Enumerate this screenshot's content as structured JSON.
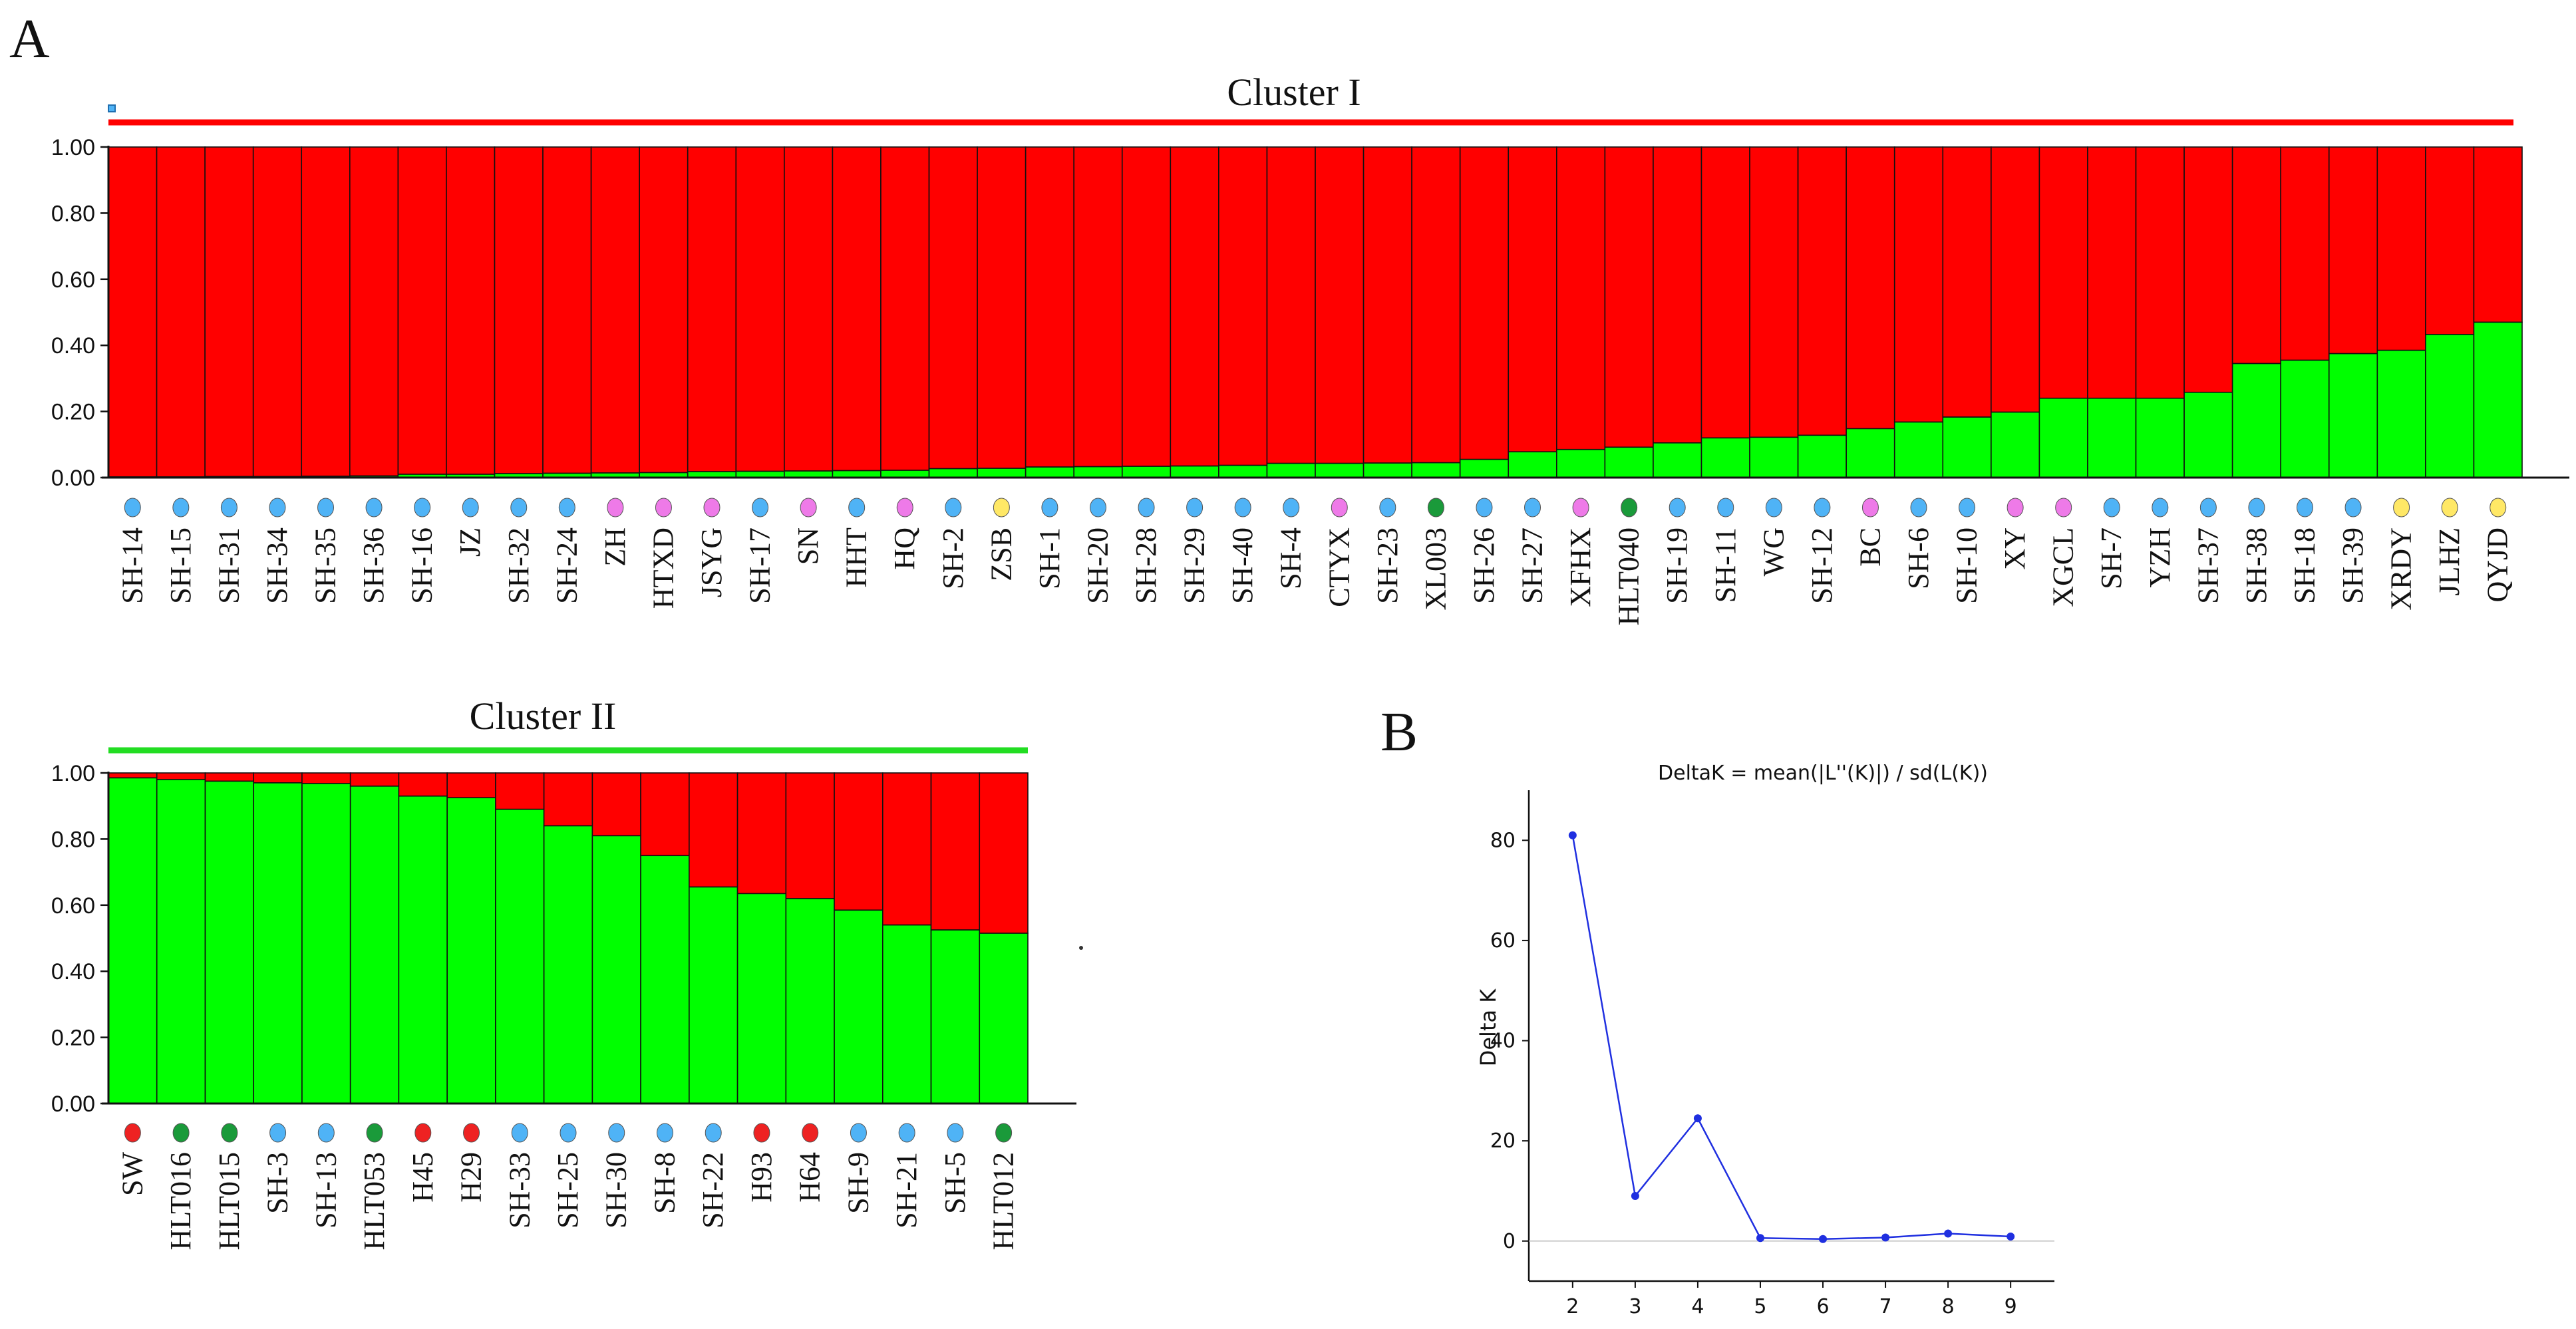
{
  "figure": {
    "panel_a_label": "A",
    "panel_b_label": "B"
  },
  "colors": {
    "cluster1": "#ff0000",
    "cluster2": "#00ff00",
    "dot_blue": "#4fb3f6",
    "dot_magenta": "#ee7ae8",
    "dot_green": "#1a9a3a",
    "dot_yellow": "#ffe866",
    "dot_red": "#ee2222",
    "line_blue": "#1f2fe0"
  },
  "chart_data": [
    {
      "type": "bar",
      "subtype": "stacked-admixture",
      "title": "Cluster I",
      "ylim": [
        0,
        1
      ],
      "yticks": [
        "0.00",
        "0.20",
        "0.40",
        "0.60",
        "0.80",
        "1.00"
      ],
      "series_names": [
        "red",
        "green"
      ],
      "categories": [
        "SH-14",
        "SH-15",
        "SH-31",
        "SH-34",
        "SH-35",
        "SH-36",
        "SH-16",
        "JZ",
        "SH-32",
        "SH-24",
        "ZH",
        "HTXD",
        "JSYG",
        "SH-17",
        "SN",
        "HHT",
        "HQ",
        "SH-2",
        "ZSB",
        "SH-1",
        "SH-20",
        "SH-28",
        "SH-29",
        "SH-40",
        "SH-4",
        "CTYX",
        "SH-23",
        "XL003",
        "SH-26",
        "SH-27",
        "XFHX",
        "HLT040",
        "SH-19",
        "SH-11",
        "WG",
        "SH-12",
        "BC",
        "SH-6",
        "SH-10",
        "XY",
        "XGCL",
        "SH-7",
        "YZH",
        "SH-37",
        "SH-38",
        "SH-18",
        "SH-39",
        "XRDY",
        "JLHZ",
        "QYJD"
      ],
      "green_values": [
        0.002,
        0.002,
        0.003,
        0.003,
        0.004,
        0.005,
        0.01,
        0.01,
        0.012,
        0.013,
        0.014,
        0.015,
        0.018,
        0.019,
        0.02,
        0.021,
        0.022,
        0.027,
        0.028,
        0.032,
        0.033,
        0.034,
        0.035,
        0.037,
        0.043,
        0.043,
        0.044,
        0.045,
        0.055,
        0.078,
        0.085,
        0.092,
        0.105,
        0.12,
        0.122,
        0.128,
        0.148,
        0.168,
        0.183,
        0.198,
        0.24,
        0.24,
        0.24,
        0.258,
        0.345,
        0.355,
        0.375,
        0.385,
        0.433,
        0.47
      ],
      "dots": [
        "blue",
        "blue",
        "blue",
        "blue",
        "blue",
        "blue",
        "blue",
        "blue",
        "blue",
        "blue",
        "magenta",
        "magenta",
        "magenta",
        "blue",
        "magenta",
        "blue",
        "magenta",
        "blue",
        "yellow",
        "blue",
        "blue",
        "blue",
        "blue",
        "blue",
        "blue",
        "magenta",
        "blue",
        "green",
        "blue",
        "blue",
        "magenta",
        "green",
        "blue",
        "blue",
        "blue",
        "blue",
        "magenta",
        "blue",
        "blue",
        "magenta",
        "magenta",
        "blue",
        "blue",
        "blue",
        "blue",
        "blue",
        "blue",
        "yellow",
        "yellow",
        "yellow"
      ]
    },
    {
      "type": "bar",
      "subtype": "stacked-admixture",
      "title": "Cluster II",
      "ylim": [
        0,
        1
      ],
      "yticks": [
        "0.00",
        "0.20",
        "0.40",
        "0.60",
        "0.80",
        "1.00"
      ],
      "series_names": [
        "red",
        "green"
      ],
      "categories": [
        "SW",
        "HLT016",
        "HLT015",
        "SH-3",
        "SH-13",
        "HLT053",
        "H45",
        "H29",
        "SH-33",
        "SH-25",
        "SH-30",
        "SH-8",
        "SH-22",
        "H93",
        "H64",
        "SH-9",
        "SH-21",
        "SH-5",
        "HLT012"
      ],
      "green_values": [
        0.985,
        0.98,
        0.975,
        0.97,
        0.968,
        0.96,
        0.93,
        0.925,
        0.89,
        0.84,
        0.81,
        0.75,
        0.655,
        0.635,
        0.62,
        0.585,
        0.54,
        0.525,
        0.515
      ],
      "dots": [
        "red",
        "green",
        "green",
        "blue",
        "blue",
        "green",
        "red",
        "red",
        "blue",
        "blue",
        "blue",
        "blue",
        "blue",
        "red",
        "red",
        "blue",
        "blue",
        "blue",
        "green"
      ]
    },
    {
      "type": "line",
      "title": "DeltaK = mean(|L''(K)|) / sd(L(K))",
      "xlabel": "",
      "ylabel": "Delta K",
      "x": [
        2,
        3,
        4,
        5,
        6,
        7,
        8,
        9
      ],
      "values": [
        81,
        9,
        24.5,
        0.6,
        0.4,
        0.7,
        1.5,
        0.9
      ],
      "xlim": [
        1.3,
        9.7
      ],
      "ylim": [
        -8,
        90
      ],
      "xticks": [
        "2",
        "3",
        "4",
        "5",
        "6",
        "7",
        "8",
        "9"
      ],
      "yticks": [
        "0",
        "20",
        "40",
        "60",
        "80"
      ]
    }
  ]
}
